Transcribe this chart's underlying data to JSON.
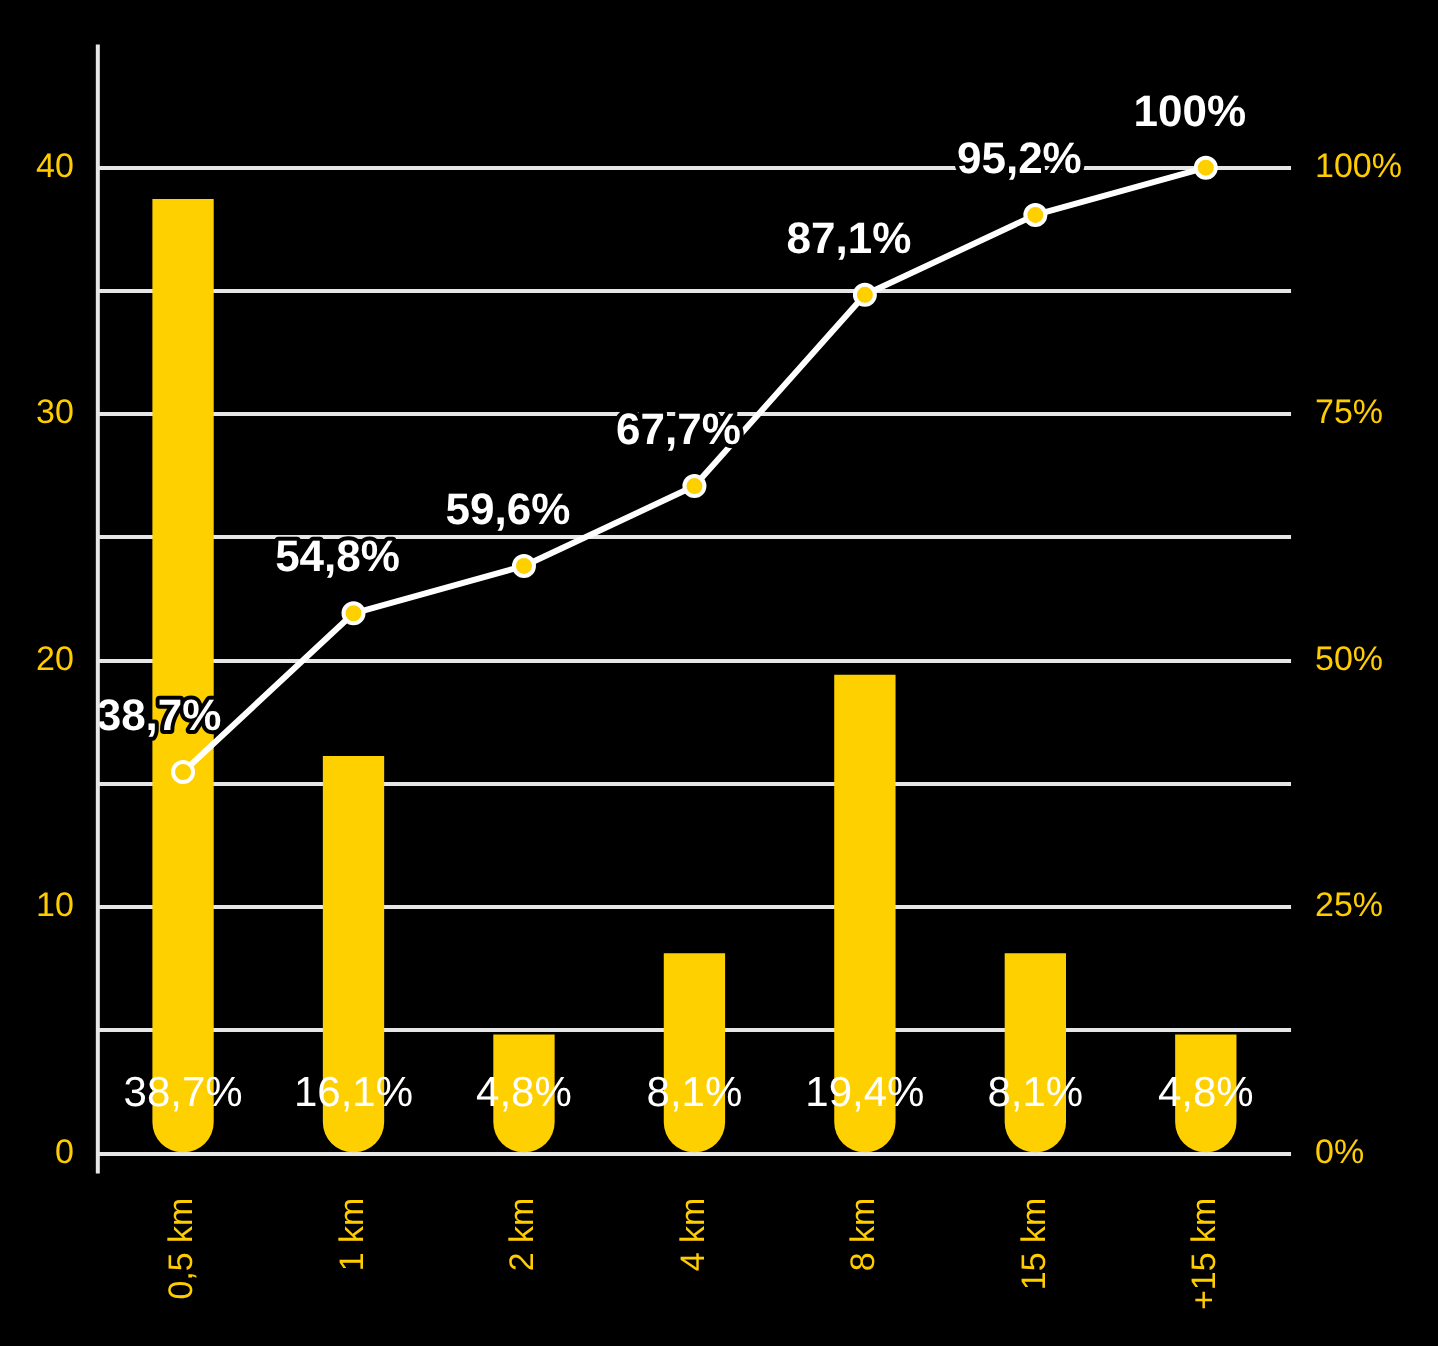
{
  "chart_data": {
    "type": "bar",
    "categories": [
      "0,5 km",
      "1 km",
      "2 km",
      "4 km",
      "8 km",
      "15 km",
      "+15 km"
    ],
    "series": [
      {
        "color": "#ffd000",
        "values": [
          38.7,
          16.1,
          4.8,
          8.1,
          19.4,
          8.1,
          4.8
        ],
        "value_labels": [
          "38,7%",
          "16,1%",
          "4,8%",
          "8,1%",
          "19,4%",
          "8,1%",
          "4,8%"
        ]
      },
      {
        "type": "line",
        "axis": "y2",
        "color": "#ffffff",
        "values": [
          38.7,
          54.8,
          59.6,
          67.7,
          87.1,
          95.2,
          100
        ],
        "value_labels": [
          "38,7%",
          "54,8%",
          "59,6%",
          "67,7%",
          "87,1%",
          "95,2%",
          "100%"
        ]
      }
    ],
    "ylim": [
      0,
      45
    ],
    "yticks": [
      0,
      {
        "value": 5,
        "label": null
      },
      10,
      {
        "value": 15,
        "label": null
      },
      20,
      {
        "value": 25,
        "label": null
      },
      30,
      {
        "value": 35,
        "label": null
      },
      40
    ],
    "y2lim": [
      0,
      112.5
    ],
    "y2ticks": [
      {
        "value": 0,
        "label": "0%"
      },
      {
        "value": 12.5,
        "label": null
      },
      {
        "value": 25,
        "label": "25%"
      },
      {
        "value": 37.5,
        "label": null
      },
      {
        "value": 50,
        "label": "50%"
      },
      {
        "value": 62.5,
        "label": null
      },
      {
        "value": 75,
        "label": "75%"
      },
      {
        "value": 87.5,
        "label": null
      },
      {
        "value": 100,
        "label": "100%"
      }
    ],
    "grid": "y",
    "marker": "circle",
    "line_style": "solid"
  }
}
